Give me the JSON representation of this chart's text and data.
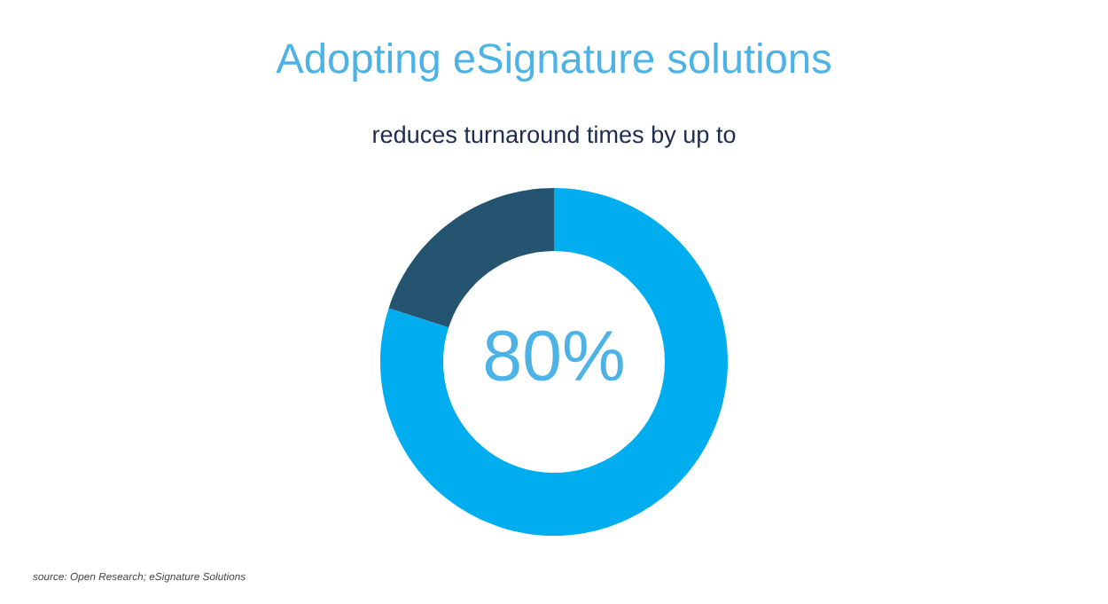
{
  "chart_data": {
    "type": "donut",
    "title": "Adopting eSignature solutions",
    "subtitle": "reduces turnaround times by up to",
    "categories": [
      null,
      null
    ],
    "values": [
      80,
      20
    ],
    "colors": [
      "#00aeef",
      "#24546f"
    ],
    "value_labels": [
      "80%",
      null
    ],
    "annotations": [
      "source: Open Research; eSignature Solutions"
    ]
  }
}
